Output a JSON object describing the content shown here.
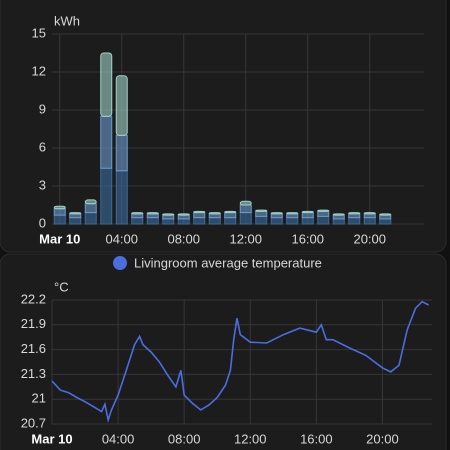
{
  "chart_data": [
    {
      "type": "stacked-bar",
      "y_label": "kWh",
      "x": [
        0,
        1,
        2,
        3,
        4,
        5,
        6,
        7,
        8,
        9,
        10,
        11,
        12,
        13,
        14,
        15,
        16,
        17,
        18,
        19,
        20,
        21
      ],
      "series": [
        {
          "color": "#3b6a9c",
          "values": [
            0.7,
            0.5,
            0.9,
            4.4,
            4.2,
            0.5,
            0.5,
            0.4,
            0.4,
            0.5,
            0.5,
            0.5,
            0.9,
            0.6,
            0.5,
            0.5,
            0.5,
            0.6,
            0.4,
            0.5,
            0.5,
            0.4
          ]
        },
        {
          "color": "#6a9acb",
          "values": [
            0.5,
            0.3,
            0.7,
            4.1,
            2.8,
            0.3,
            0.3,
            0.3,
            0.3,
            0.4,
            0.3,
            0.4,
            0.6,
            0.4,
            0.3,
            0.3,
            0.4,
            0.4,
            0.3,
            0.3,
            0.3,
            0.3
          ]
        },
        {
          "color": "#9fd2c8",
          "values": [
            0.2,
            0.1,
            0.3,
            5.0,
            4.7,
            0.1,
            0.1,
            0.1,
            0.1,
            0.1,
            0.1,
            0.1,
            0.3,
            0.1,
            0.1,
            0.1,
            0.1,
            0.1,
            0.1,
            0.1,
            0.1,
            0.1
          ]
        }
      ],
      "xlim": [
        -0.5,
        23.5
      ],
      "xticks": [
        {
          "value": 0,
          "label": "Mar 10"
        },
        {
          "value": 4,
          "label": "04:00"
        },
        {
          "value": 8,
          "label": "08:00"
        },
        {
          "value": 12,
          "label": "12:00"
        },
        {
          "value": 16,
          "label": "16:00"
        },
        {
          "value": 20,
          "label": "20:00"
        }
      ],
      "ylim": [
        0,
        15
      ],
      "yticks": [
        0,
        3,
        6,
        9,
        12,
        15
      ],
      "grid": true
    },
    {
      "type": "line",
      "y_label": "°C",
      "x": [
        0,
        0.5,
        1,
        1.5,
        2,
        2.5,
        3,
        3.2,
        3.4,
        3.6,
        4,
        4.5,
        5,
        5.3,
        5.5,
        6,
        6.5,
        7,
        7.5,
        7.8,
        8,
        8.5,
        9,
        9.5,
        10,
        10.5,
        10.8,
        11,
        11.2,
        11.4,
        12,
        13,
        14,
        15,
        16,
        16.3,
        16.6,
        17,
        18,
        19,
        20,
        20.5,
        21,
        21.5,
        22,
        22.4,
        22.8
      ],
      "series": [
        {
          "name": "Livingroom average temperature",
          "color": "#4a6ee0",
          "values": [
            21.22,
            21.11,
            21.08,
            21.02,
            20.97,
            20.91,
            20.85,
            20.94,
            20.75,
            20.87,
            21.05,
            21.35,
            21.66,
            21.76,
            21.66,
            21.57,
            21.45,
            21.29,
            21.15,
            21.35,
            21.05,
            20.95,
            20.87,
            20.93,
            21.02,
            21.17,
            21.35,
            21.72,
            21.98,
            21.78,
            21.69,
            21.68,
            21.78,
            21.86,
            21.81,
            21.9,
            21.72,
            21.72,
            21.62,
            21.53,
            21.38,
            21.33,
            21.41,
            21.84,
            22.1,
            22.18,
            22.14
          ]
        }
      ],
      "xlim": [
        0,
        23
      ],
      "xticks": [
        {
          "value": 0,
          "label": "Mar 10"
        },
        {
          "value": 4,
          "label": "04:00"
        },
        {
          "value": 8,
          "label": "08:00"
        },
        {
          "value": 12,
          "label": "12:00"
        },
        {
          "value": 16,
          "label": "16:00"
        },
        {
          "value": 20,
          "label": "20:00"
        }
      ],
      "ylim": [
        20.7,
        22.2
      ],
      "yticks": [
        20.7,
        21,
        21.3,
        21.6,
        21.9,
        22.2
      ],
      "grid": true
    }
  ]
}
